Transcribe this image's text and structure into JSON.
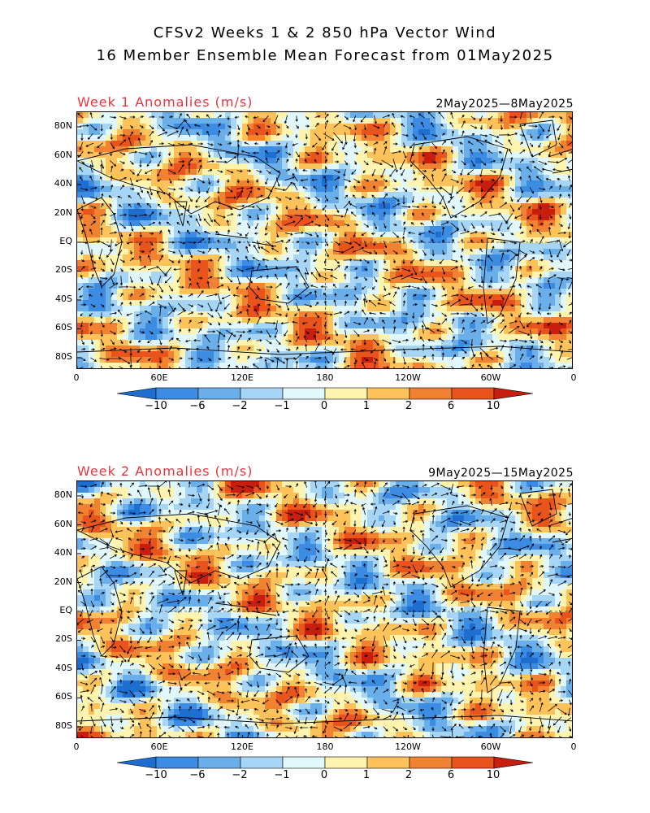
{
  "title": {
    "line1": "CFSv2 Weeks 1 & 2 850 hPa Vector Wind",
    "line2": "16 Member Ensemble Mean Forecast from 01May2025"
  },
  "panels": [
    {
      "label": "Week 1 Anomalies (m/s)",
      "date_range": "2May2025—8May2025",
      "lat_ticks": [
        "80N",
        "60N",
        "40N",
        "20N",
        "EQ",
        "20S",
        "40S",
        "60S",
        "80S"
      ],
      "lon_ticks": [
        "0",
        "60E",
        "120E",
        "180",
        "120W",
        "60W",
        "0"
      ]
    },
    {
      "label": "Week 2 Anomalies (m/s)",
      "date_range": "9May2025—15May2025",
      "lat_ticks": [
        "80N",
        "60N",
        "40N",
        "20N",
        "EQ",
        "20S",
        "40S",
        "60S",
        "80S"
      ],
      "lon_ticks": [
        "0",
        "60E",
        "120E",
        "180",
        "120W",
        "60W",
        "0"
      ]
    }
  ],
  "colorbar": {
    "labels": [
      "−10",
      "−6",
      "−2",
      "−1",
      "0",
      "1",
      "2",
      "6",
      "10"
    ],
    "colors": [
      "#1e6ed0",
      "#3d8ce4",
      "#6aaeea",
      "#a7d5f5",
      "#e0f7fb",
      "#fff3b0",
      "#fdc35a",
      "#f08232",
      "#e8541c",
      "#c81e10"
    ]
  },
  "colors": {
    "title_red": "#e8353d",
    "coast": "#000000"
  }
}
